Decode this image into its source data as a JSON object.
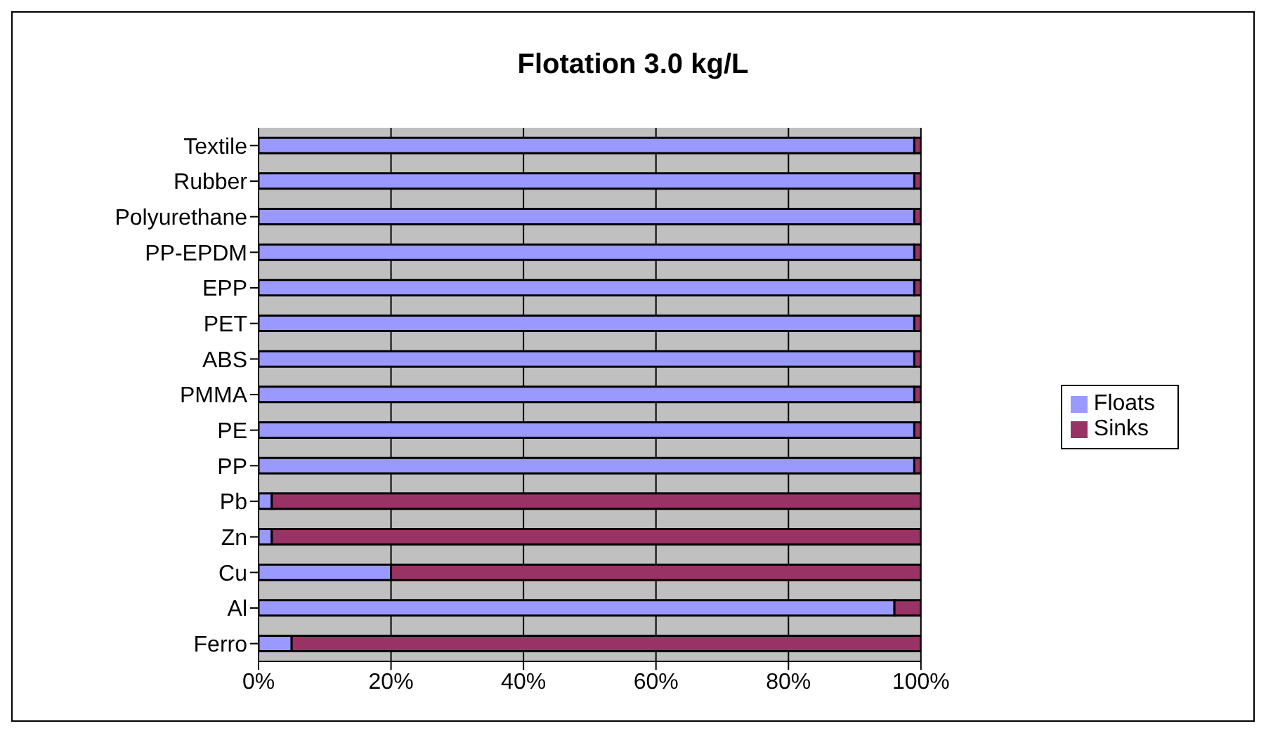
{
  "chart_data": {
    "type": "bar",
    "orientation": "horizontal",
    "stacked": true,
    "title": "Flotation 3.0 kg/L",
    "categories": [
      "Textile",
      "Rubber",
      "Polyurethane",
      "PP-EPDM",
      "EPP",
      "PET",
      "ABS",
      "PMMA",
      "PE",
      "PP",
      "Pb",
      "Zn",
      "Cu",
      "Al",
      "Ferro"
    ],
    "series": [
      {
        "name": "Floats",
        "color": "#9999ff",
        "values": [
          99,
          99,
          99,
          99,
          99,
          99,
          99,
          99,
          99,
          99,
          2,
          2,
          20,
          96,
          5
        ]
      },
      {
        "name": "Sinks",
        "color": "#993366",
        "values": [
          1,
          1,
          1,
          1,
          1,
          1,
          1,
          1,
          1,
          1,
          98,
          98,
          80,
          4,
          95
        ]
      }
    ],
    "xlim": [
      0,
      100
    ],
    "xticks": [
      {
        "value": 0,
        "label": "0%"
      },
      {
        "value": 20,
        "label": "20%"
      },
      {
        "value": 40,
        "label": "40%"
      },
      {
        "value": 60,
        "label": "60%"
      },
      {
        "value": 80,
        "label": "80%"
      },
      {
        "value": 100,
        "label": "100%"
      }
    ],
    "grid": "x",
    "legend": "right"
  }
}
